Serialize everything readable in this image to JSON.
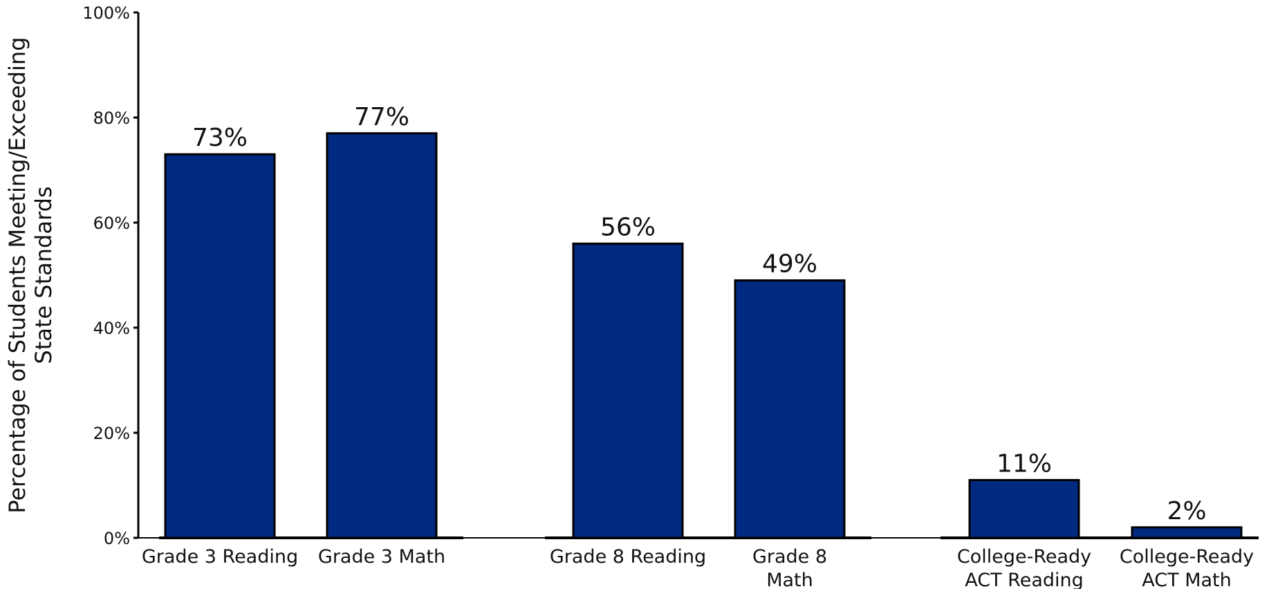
{
  "chart_data": {
    "type": "bar",
    "categories": [
      [
        "Grade 3 Reading"
      ],
      [
        "Grade 3 Math"
      ],
      [
        "Grade 8 Reading"
      ],
      [
        "Grade 8",
        "Math"
      ],
      [
        "College-Ready",
        "ACT Reading"
      ],
      [
        "College-Ready",
        "ACT Math"
      ]
    ],
    "values": [
      73,
      77,
      56,
      49,
      11,
      2
    ],
    "data_labels": [
      "73%",
      "77%",
      "56%",
      "49%",
      "11%",
      "2%"
    ],
    "groups": [
      [
        0,
        1
      ],
      [
        2,
        3
      ],
      [
        4,
        5
      ]
    ],
    "ylabel": [
      "Percentage of Students Meeting/Exceeding",
      "State Standards"
    ],
    "xlabel": "",
    "ylim": [
      0,
      100
    ],
    "yticks": [
      0,
      20,
      40,
      60,
      80,
      100
    ],
    "ytick_labels": [
      "0%",
      "20%",
      "40%",
      "60%",
      "80%",
      "100%"
    ],
    "grid": false,
    "legend": "none",
    "bar_color": "#002a7f",
    "bar_edge_color": "#000000"
  }
}
